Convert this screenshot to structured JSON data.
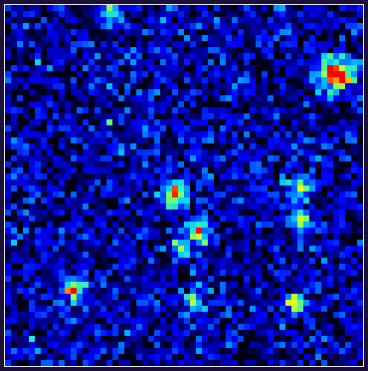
{
  "image": {
    "kind": "false-color intensity map",
    "colormap": [
      "#000010",
      "#00008f",
      "#0000ff",
      "#0066ff",
      "#00d8ff",
      "#6dff6d",
      "#ffff00",
      "#ff6600",
      "#ff0000"
    ],
    "grid": {
      "rows": 60,
      "cols": 60
    },
    "background_level": 0.33,
    "noise_level": 0.26,
    "sources": [
      {
        "name": "bright-source",
        "col": 55,
        "row": 11,
        "peak": 1.0,
        "spread": 1.8
      },
      {
        "name": "source-center",
        "col": 28,
        "row": 31,
        "peak": 0.72,
        "spread": 1.5
      },
      {
        "name": "source-right-upper",
        "col": 49,
        "row": 30,
        "peak": 0.55,
        "spread": 1.3
      },
      {
        "name": "source-right-mid",
        "col": 49,
        "row": 35,
        "peak": 0.55,
        "spread": 1.3
      },
      {
        "name": "source-center-lower",
        "col": 32,
        "row": 37,
        "peak": 0.58,
        "spread": 1.4
      },
      {
        "name": "source-mid",
        "col": 29,
        "row": 40,
        "peak": 0.48,
        "spread": 1.2
      },
      {
        "name": "source-left",
        "col": 11,
        "row": 47,
        "peak": 0.62,
        "spread": 1.3
      },
      {
        "name": "source-lower",
        "col": 31,
        "row": 49,
        "peak": 0.47,
        "spread": 1.2
      },
      {
        "name": "source-right-lower",
        "col": 48,
        "row": 49,
        "peak": 0.55,
        "spread": 1.3
      },
      {
        "name": "source-top",
        "col": 17,
        "row": 1,
        "peak": 0.5,
        "spread": 1.1
      }
    ]
  }
}
